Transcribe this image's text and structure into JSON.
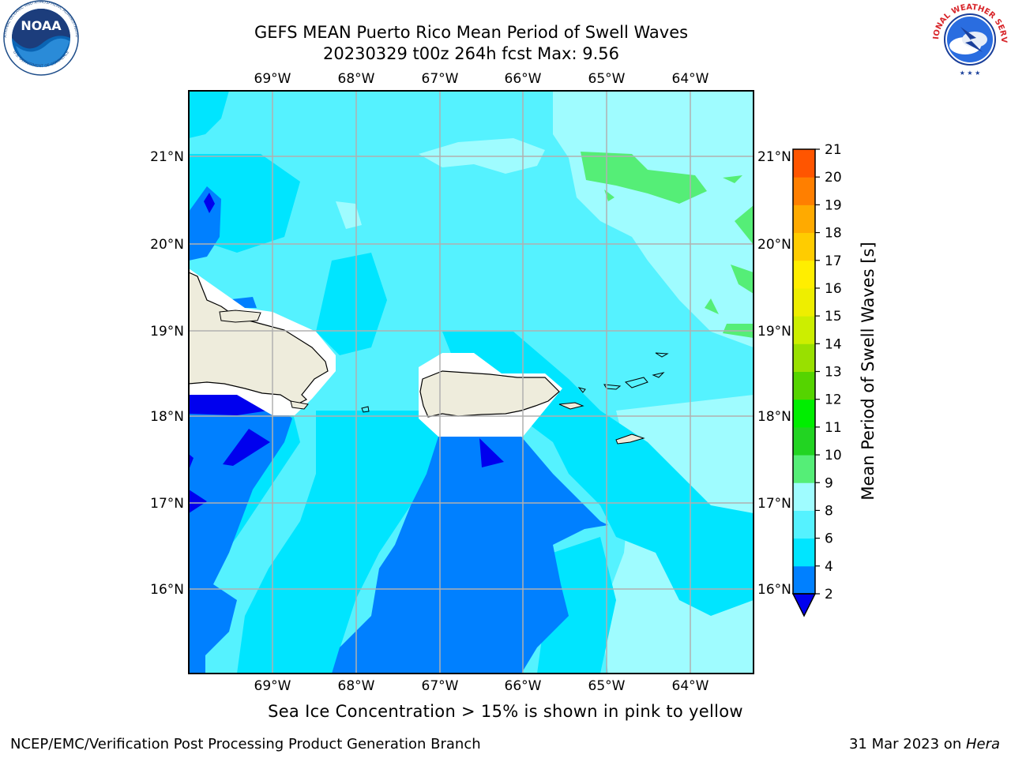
{
  "title_line1": "GEFS MEAN Puerto Rico Mean Period of Swell Waves",
  "title_line2": "20230329 t00z 264h fcst   Max: 9.56",
  "logos": {
    "noaa": {
      "text": "NOAA",
      "ring_text": "NATIONAL OCEANIC AND ATMOSPHERIC ADMINISTRATION",
      "bottom_text": "U.S. DEPARTMENT OF COMMERCE"
    },
    "nws": {
      "ring_text": "NATIONAL WEATHER SERVICE"
    }
  },
  "map": {
    "lon_labels": [
      "69°W",
      "68°W",
      "67°W",
      "66°W",
      "65°W",
      "64°W"
    ],
    "lat_labels": [
      "21°N",
      "20°N",
      "19°N",
      "18°N",
      "17°N",
      "16°N"
    ],
    "grid": true,
    "land_color": "#eeecdc",
    "regions": [
      "Hispaniola",
      "Puerto Rico",
      "Virgin Islands"
    ]
  },
  "colorbar": {
    "label": "Mean Period of Swell Waves [s]",
    "ticks": [
      "2",
      "4",
      "6",
      "8",
      "9",
      "10",
      "11",
      "12",
      "13",
      "14",
      "15",
      "16",
      "17",
      "18",
      "19",
      "20",
      "21"
    ],
    "colors": [
      "#0080ff",
      "#00e5ff",
      "#55f2ff",
      "#9ffcff",
      "#55ee77",
      "#22d422",
      "#00ee00",
      "#55d400",
      "#99e000",
      "#ccee00",
      "#eeee00",
      "#ffee00",
      "#ffcc00",
      "#ffaa00",
      "#ff7f00",
      "#ff5500",
      "#ff2200",
      "#ff0000"
    ],
    "under_color": "#0000ee"
  },
  "note": "Sea Ice Concentration > 15% is shown in pink to yellow",
  "footer_left": "NCEP/EMC/Verification Post Processing Product Generation Branch",
  "footer_right_prefix": "31 Mar 2023 on ",
  "footer_right_host": "Hera"
}
